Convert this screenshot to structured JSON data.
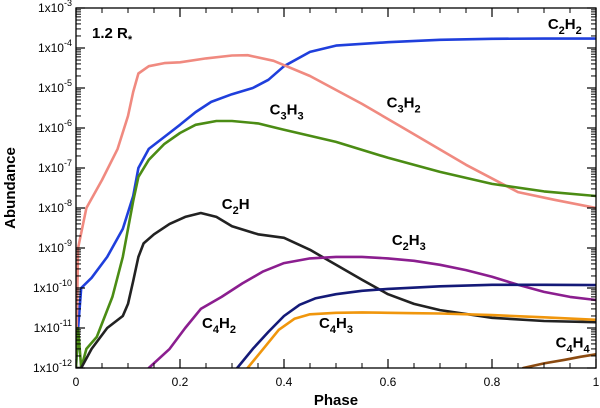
{
  "chart_data": {
    "type": "line",
    "title": "",
    "panel_label": {
      "main": "1.2 R",
      "sub": "*"
    },
    "xlabel": "Phase",
    "ylabel": "Abundance",
    "xscale": "linear",
    "yscale": "log",
    "xlim": [
      0,
      1
    ],
    "ylim": [
      1e-12,
      0.001
    ],
    "grid": false,
    "legend": "inline labels",
    "x_ticks": [
      {
        "value": 0,
        "label": "0"
      },
      {
        "value": 0.2,
        "label": "0.2"
      },
      {
        "value": 0.4,
        "label": "0.4"
      },
      {
        "value": 0.6,
        "label": "0.6"
      },
      {
        "value": 0.8,
        "label": "0.8"
      },
      {
        "value": 1,
        "label": "1"
      }
    ],
    "y_ticks": [
      {
        "value": 1e-12,
        "base": "1x10",
        "exp": "-12"
      },
      {
        "value": 1e-11,
        "base": "1x10",
        "exp": "-11"
      },
      {
        "value": 1e-10,
        "base": "1x10",
        "exp": "-10"
      },
      {
        "value": 1e-09,
        "base": "1x10",
        "exp": "-9"
      },
      {
        "value": 1e-08,
        "base": "1x10",
        "exp": "-8"
      },
      {
        "value": 1e-07,
        "base": "1x10",
        "exp": "-7"
      },
      {
        "value": 1e-06,
        "base": "1x10",
        "exp": "-6"
      },
      {
        "value": 1e-05,
        "base": "1x10",
        "exp": "-5"
      },
      {
        "value": 0.0001,
        "base": "1x10",
        "exp": "-4"
      },
      {
        "value": 0.001,
        "base": "1x10",
        "exp": "-3"
      }
    ],
    "series": [
      {
        "name": "C2H2",
        "label_parts": [
          [
            "C",
            ""
          ],
          [
            "2",
            "sub"
          ],
          [
            "H",
            ""
          ],
          [
            "2",
            "sub"
          ]
        ],
        "label_pos": {
          "x": 0.94,
          "y": 0.0003
        },
        "label_anchor": "middle",
        "color": "#1f3fdc",
        "x": [
          0.0,
          0.004,
          0.01,
          0.03,
          0.06,
          0.09,
          0.11,
          0.12,
          0.14,
          0.17,
          0.2,
          0.23,
          0.26,
          0.3,
          0.34,
          0.37,
          0.4,
          0.45,
          0.5,
          0.6,
          0.7,
          0.8,
          0.9,
          1.0
        ],
        "y": [
          1e-12,
          1e-11,
          1e-10,
          1.8e-10,
          6e-10,
          3e-09,
          2e-08,
          1e-07,
          3e-07,
          6e-07,
          1.2e-06,
          2.5e-06,
          4.5e-06,
          7e-06,
          1e-05,
          1.6e-05,
          3.5e-05,
          8e-05,
          0.000115,
          0.00014,
          0.00016,
          0.00017,
          0.000172,
          0.000172
        ]
      },
      {
        "name": "C3H2",
        "label_parts": [
          [
            "C",
            ""
          ],
          [
            "3",
            "sub"
          ],
          [
            "H",
            ""
          ],
          [
            "2",
            "sub"
          ]
        ],
        "label_pos": {
          "x": 0.63,
          "y": 3.3e-06
        },
        "label_anchor": "middle",
        "color": "#f08a80",
        "x": [
          0.0,
          0.004,
          0.02,
          0.05,
          0.08,
          0.1,
          0.11,
          0.12,
          0.14,
          0.17,
          0.2,
          0.25,
          0.3,
          0.33,
          0.38,
          0.45,
          0.55,
          0.65,
          0.75,
          0.85,
          0.92,
          1.0
        ],
        "y": [
          1e-12,
          1e-09,
          1e-08,
          5e-08,
          3e-07,
          2e-06,
          8e-06,
          2.3e-05,
          3.5e-05,
          4.2e-05,
          4.4e-05,
          5.5e-05,
          6.5e-05,
          6.6e-05,
          4.8e-05,
          2e-05,
          4e-06,
          7e-07,
          1.2e-07,
          2.5e-08,
          1.6e-08,
          1e-08
        ]
      },
      {
        "name": "C3H3",
        "label_parts": [
          [
            "C",
            ""
          ],
          [
            "3",
            "sub"
          ],
          [
            "H",
            ""
          ],
          [
            "3",
            "sub"
          ]
        ],
        "label_pos": {
          "x": 0.405,
          "y": 2.2e-06
        },
        "label_anchor": "middle",
        "color": "#4b8c14",
        "x": [
          0.0,
          0.004,
          0.01,
          0.02,
          0.04,
          0.07,
          0.09,
          0.1,
          0.11,
          0.12,
          0.14,
          0.17,
          0.2,
          0.23,
          0.27,
          0.3,
          0.35,
          0.4,
          0.5,
          0.6,
          0.7,
          0.8,
          0.9,
          1.0
        ],
        "y": [
          1e-12,
          1e-11,
          1e-12,
          3e-12,
          6e-12,
          6e-11,
          6e-10,
          3e-09,
          1.5e-08,
          6e-08,
          1.6e-07,
          4e-07,
          7.5e-07,
          1.2e-06,
          1.5e-06,
          1.5e-06,
          1.3e-06,
          9e-07,
          4.5e-07,
          1.8e-07,
          8e-08,
          4e-08,
          2.6e-08,
          2e-08
        ]
      },
      {
        "name": "C2H",
        "label_parts": [
          [
            "C",
            ""
          ],
          [
            "2",
            "sub"
          ],
          [
            "H",
            ""
          ]
        ],
        "label_pos": {
          "x": 0.307,
          "y": 9.5e-09
        },
        "label_anchor": "middle",
        "color": "#222222",
        "x": [
          0.0,
          0.004,
          0.01,
          0.03,
          0.06,
          0.09,
          0.1,
          0.11,
          0.12,
          0.13,
          0.15,
          0.18,
          0.21,
          0.24,
          0.27,
          0.3,
          0.35,
          0.4,
          0.45,
          0.5,
          0.55,
          0.6,
          0.65,
          0.7,
          0.8,
          0.9,
          1.0
        ],
        "y": [
          1e-12,
          1e-12,
          1e-12,
          3e-12,
          1e-11,
          2e-11,
          4e-11,
          1.5e-10,
          6e-10,
          1.3e-09,
          2.2e-09,
          4e-09,
          6e-09,
          7.5e-09,
          6e-09,
          3.5e-09,
          2.2e-09,
          1.8e-09,
          9e-10,
          3.8e-10,
          1.6e-10,
          7e-11,
          4e-11,
          2.8e-11,
          1.8e-11,
          1.5e-11,
          1.4e-11
        ]
      },
      {
        "name": "C2H3",
        "label_parts": [
          [
            "C",
            ""
          ],
          [
            "2",
            "sub"
          ],
          [
            "H",
            ""
          ],
          [
            "3",
            "sub"
          ]
        ],
        "label_pos": {
          "x": 0.64,
          "y": 1.2e-09
        },
        "label_anchor": "middle",
        "color": "#8b1e8f",
        "x": [
          0.14,
          0.18,
          0.21,
          0.24,
          0.28,
          0.32,
          0.36,
          0.4,
          0.45,
          0.5,
          0.55,
          0.6,
          0.65,
          0.7,
          0.75,
          0.8,
          0.85,
          0.9,
          0.95,
          1.0
        ],
        "y": [
          1e-12,
          3e-12,
          1e-11,
          3e-11,
          6e-11,
          1.3e-10,
          2.6e-10,
          4.2e-10,
          5.5e-10,
          6e-10,
          6e-10,
          5.5e-10,
          4.8e-10,
          3.8e-10,
          2.8e-10,
          1.9e-10,
          1.2e-10,
          8e-11,
          6e-11,
          5e-11
        ]
      },
      {
        "name": "C4H2",
        "label_parts": [
          [
            "C",
            ""
          ],
          [
            "4",
            "sub"
          ],
          [
            "H",
            ""
          ],
          [
            "2",
            "sub"
          ]
        ],
        "label_pos": {
          "x": 0.275,
          "y": 1e-11
        },
        "label_anchor": "middle",
        "color": "#141a78",
        "x": [
          0.31,
          0.34,
          0.37,
          0.4,
          0.43,
          0.46,
          0.5,
          0.55,
          0.6,
          0.7,
          0.8,
          0.9,
          1.0
        ],
        "y": [
          1e-12,
          3e-12,
          8e-12,
          2e-11,
          3.8e-11,
          5.5e-11,
          7e-11,
          8.5e-11,
          9.5e-11,
          1.1e-10,
          1.2e-10,
          1.2e-10,
          1.18e-10
        ]
      },
      {
        "name": "C4H3",
        "label_parts": [
          [
            "C",
            ""
          ],
          [
            "4",
            "sub"
          ],
          [
            "H",
            ""
          ],
          [
            "3",
            "sub"
          ]
        ],
        "label_pos": {
          "x": 0.5,
          "y": 1e-11
        },
        "label_anchor": "middle",
        "color": "#f0960c",
        "x": [
          0.33,
          0.36,
          0.39,
          0.42,
          0.45,
          0.5,
          0.55,
          0.6,
          0.65,
          0.7,
          0.8,
          0.9,
          1.0
        ],
        "y": [
          1e-12,
          3e-12,
          9e-12,
          1.7e-11,
          2.2e-11,
          2.4e-11,
          2.45e-11,
          2.4e-11,
          2.35e-11,
          2.3e-11,
          2.1e-11,
          1.85e-11,
          1.6e-11
        ]
      },
      {
        "name": "C4H4",
        "label_parts": [
          [
            "C",
            ""
          ],
          [
            "4",
            "sub"
          ],
          [
            "H",
            ""
          ],
          [
            "4",
            "sub"
          ]
        ],
        "label_pos": {
          "x": 0.955,
          "y": 3.3e-12
        },
        "label_anchor": "middle",
        "color": "#8b4a10",
        "x": [
          0.86,
          0.9,
          0.94,
          0.97,
          1.0
        ],
        "y": [
          1e-12,
          1.3e-12,
          1.6e-12,
          1.9e-12,
          2.2e-12
        ]
      }
    ]
  }
}
